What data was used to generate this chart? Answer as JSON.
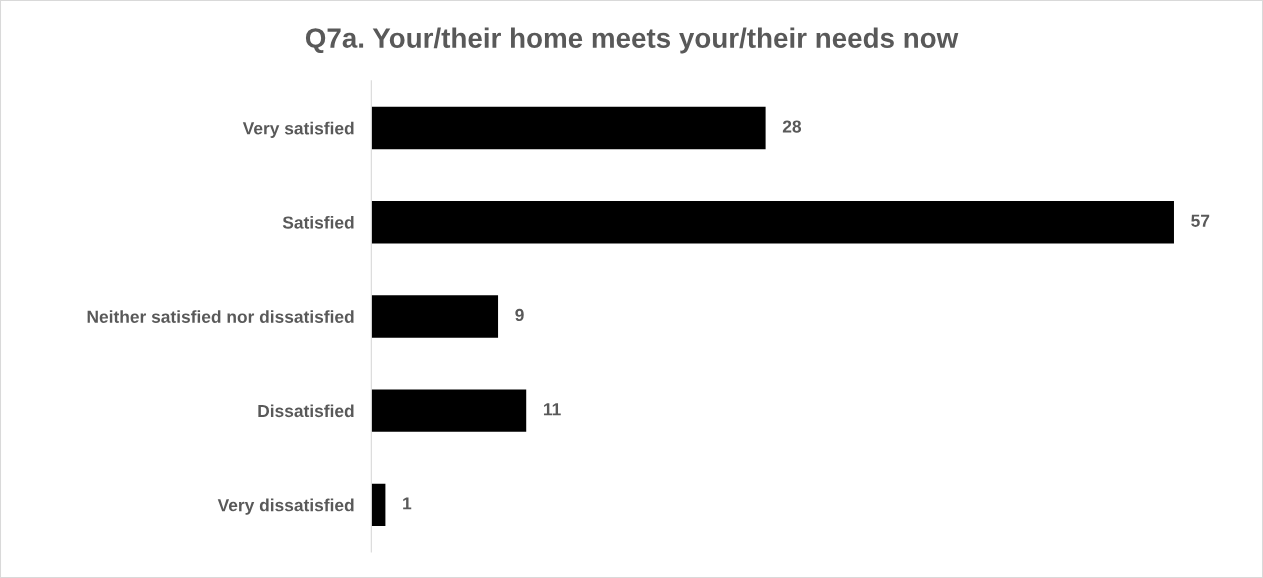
{
  "chart_data": {
    "type": "bar",
    "orientation": "horizontal",
    "title": "Q7a. Your/their home meets your/their needs now",
    "categories": [
      "Very satisfied",
      "Satisfied",
      "Neither satisfied nor dissatisfied",
      "Dissatisfied",
      "Very dissatisfied"
    ],
    "values": [
      28,
      57,
      9,
      11,
      1
    ],
    "color": "#000000",
    "data_labels": true,
    "grid": false,
    "legend": false
  }
}
